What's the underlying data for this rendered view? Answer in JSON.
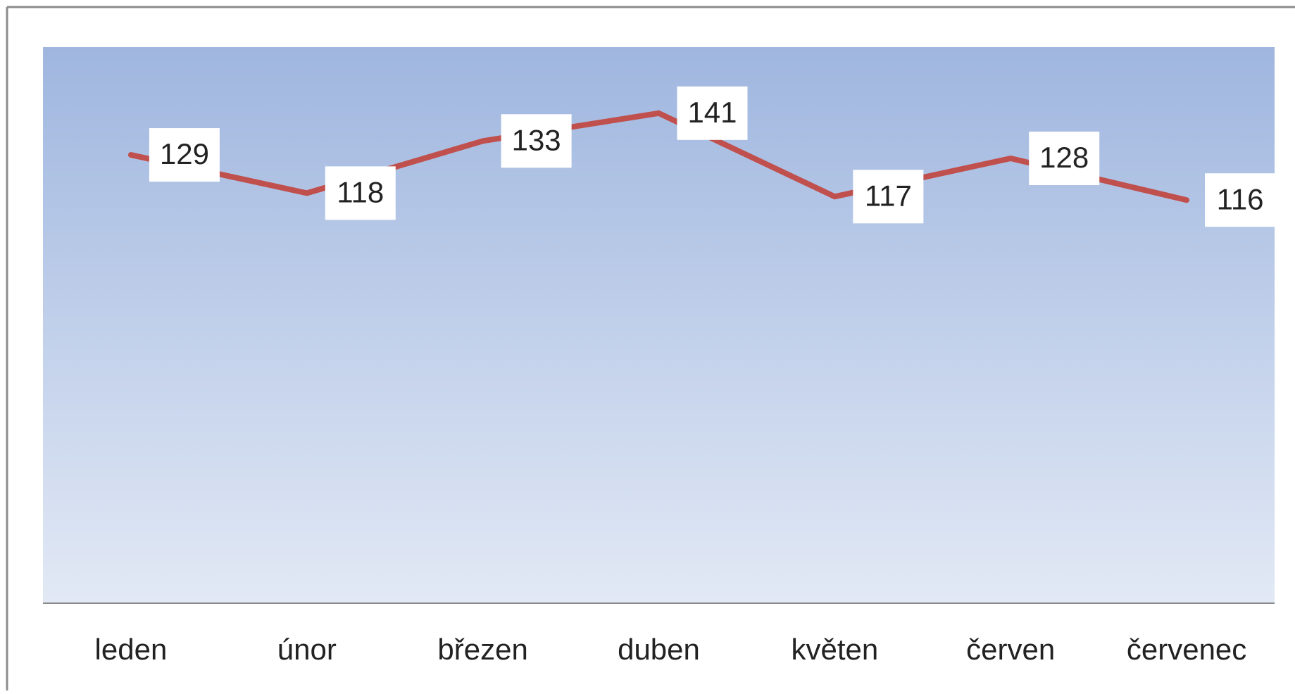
{
  "chart_data": {
    "type": "line",
    "categories": [
      "leden",
      "únor",
      "březen",
      "duben",
      "květen",
      "červen",
      "červenec"
    ],
    "series": [
      {
        "name": null,
        "color": "#c0504d",
        "values": [
          129,
          118,
          133,
          141,
          117,
          128,
          116
        ]
      }
    ],
    "ylim": [
      0,
      160
    ]
  }
}
